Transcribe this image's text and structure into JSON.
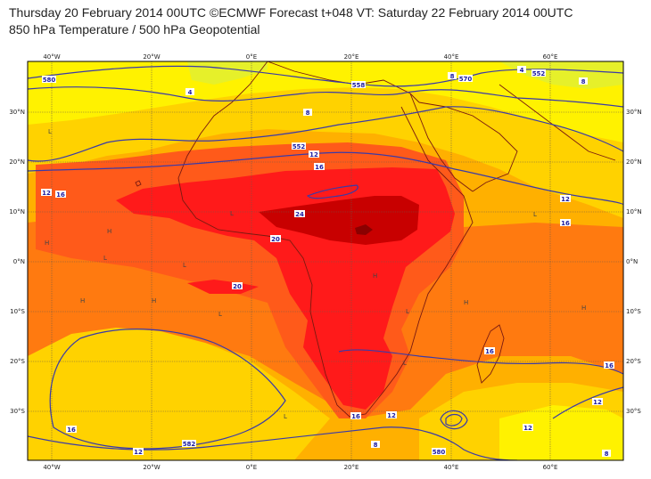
{
  "header": {
    "line1": "Thursday 20 February 2014 00UTC ©ECMWF Forecast t+048 VT: Saturday 22 February 2014 00UTC",
    "line2": "850 hPa Temperature / 500 hPa Geopotential"
  },
  "axes": {
    "lon_labels": [
      "40°W",
      "20°W",
      "0°E",
      "20°E",
      "40°E",
      "60°E"
    ],
    "lat_labels": [
      "30°N",
      "20°N",
      "10°N",
      "0°N",
      "10°S",
      "20°S",
      "30°S"
    ]
  },
  "colors": {
    "cold": "#e6f02a",
    "cool": "#fff200",
    "mild": "#ffd200",
    "warm": "#ffb000",
    "warmer": "#ff7a10",
    "hot": "#ff5a1a",
    "hotter": "#ff1a1a",
    "hottest": "#c80000",
    "extreme": "#8a0000",
    "contour": "#3a3aa8",
    "coast": "#7a1a10",
    "grid": "#6a5a4a"
  },
  "contour_labels": [
    {
      "text": "580"
    },
    {
      "text": "4"
    },
    {
      "text": "8"
    },
    {
      "text": "12"
    },
    {
      "text": "16"
    },
    {
      "text": "552"
    },
    {
      "text": "12"
    },
    {
      "text": "16"
    },
    {
      "text": "24"
    },
    {
      "text": "20"
    },
    {
      "text": "12"
    },
    {
      "text": "16"
    },
    {
      "text": "20"
    },
    {
      "text": "570"
    },
    {
      "text": "8"
    },
    {
      "text": "4"
    },
    {
      "text": "558"
    },
    {
      "text": "8"
    },
    {
      "text": "552"
    },
    {
      "text": "12"
    },
    {
      "text": "16"
    },
    {
      "text": "16"
    },
    {
      "text": "16"
    },
    {
      "text": "12"
    },
    {
      "text": "12"
    },
    {
      "text": "8"
    },
    {
      "text": "582"
    },
    {
      "text": "16"
    },
    {
      "text": "12"
    },
    {
      "text": "580"
    },
    {
      "text": "8"
    }
  ],
  "pressure_marks": [
    "L",
    "L",
    "H",
    "H",
    "L",
    "H",
    "L",
    "L",
    "H",
    "H",
    "H",
    "L",
    "H",
    "L",
    "L",
    "L"
  ]
}
